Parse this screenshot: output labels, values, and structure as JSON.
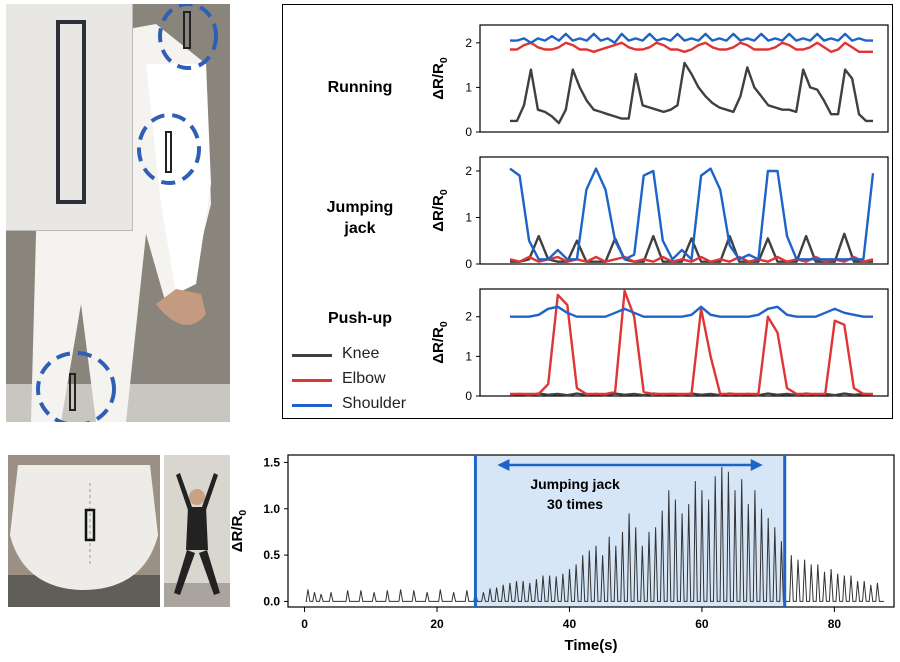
{
  "panels": {
    "running_label": "Running",
    "jumping_label_1": "Jumping",
    "jumping_label_2": "jack",
    "pushup_label": "Push-up"
  },
  "legend": [
    "Knee",
    "Elbow",
    "Shoulder"
  ],
  "colors": {
    "knee": "#404040",
    "elbow": "#e03535",
    "shoulder": "#1e64c8",
    "highlight_fill": "#d6e6f7",
    "highlight_edge": "#1e64c8"
  },
  "chart_data": [
    {
      "type": "line",
      "title": "Running",
      "ylabel": "ΔR/R0",
      "ylim": [
        0,
        2.4
      ],
      "yticks": [
        "0",
        "1",
        "2"
      ],
      "series": [
        {
          "name": "Knee",
          "values": [
            0.25,
            0.25,
            0.6,
            1.4,
            0.5,
            0.45,
            0.35,
            0.2,
            0.5,
            1.4,
            1.0,
            0.7,
            0.5,
            0.45,
            0.4,
            0.35,
            0.3,
            0.3,
            1.3,
            0.6,
            0.55,
            0.5,
            0.45,
            0.5,
            0.6,
            1.55,
            1.3,
            1.0,
            0.8,
            0.65,
            0.55,
            0.5,
            0.45,
            0.8,
            1.45,
            1.0,
            0.8,
            0.6,
            0.55,
            0.5,
            0.5,
            0.45,
            1.4,
            1.0,
            0.95,
            0.7,
            0.4,
            0.4,
            1.4,
            1.2,
            0.4,
            0.25,
            0.25
          ]
        },
        {
          "name": "Elbow",
          "values": [
            1.85,
            1.85,
            1.95,
            2.0,
            1.9,
            1.85,
            1.85,
            1.9,
            2.0,
            1.95,
            1.85,
            1.85,
            1.8,
            1.85,
            1.9,
            1.95,
            2.0,
            1.9,
            1.85,
            1.85,
            1.9,
            2.0,
            1.95,
            1.85,
            1.85,
            1.8,
            1.85,
            1.95,
            2.0,
            1.9,
            1.85,
            1.85,
            1.9,
            2.0,
            1.95,
            1.85,
            1.85,
            1.85,
            1.9,
            2.0,
            1.95,
            1.85,
            1.85,
            1.9,
            2.0,
            1.9,
            1.8,
            1.85,
            2.0,
            1.9,
            1.8,
            1.8,
            1.8
          ]
        },
        {
          "name": "Shoulder",
          "values": [
            2.05,
            2.05,
            2.1,
            2.0,
            2.1,
            2.05,
            2.15,
            2.05,
            2.2,
            2.05,
            2.1,
            2.05,
            2.2,
            2.05,
            2.1,
            2.0,
            2.2,
            2.05,
            2.1,
            2.05,
            2.2,
            2.05,
            2.1,
            2.05,
            2.2,
            2.05,
            2.1,
            2.05,
            2.2,
            2.05,
            2.1,
            2.05,
            2.2,
            2.05,
            2.1,
            2.05,
            2.2,
            2.05,
            2.1,
            2.05,
            2.2,
            2.05,
            2.1,
            2.05,
            2.2,
            2.05,
            2.1,
            2.05,
            2.2,
            2.05,
            2.1,
            2.05,
            2.05
          ]
        }
      ]
    },
    {
      "type": "line",
      "title": "Jumping jack",
      "ylabel": "ΔR/R0",
      "ylim": [
        0,
        2.3
      ],
      "yticks": [
        "0",
        "1",
        "2"
      ],
      "series": [
        {
          "name": "Knee",
          "values": [
            0.05,
            0.05,
            0.1,
            0.6,
            0.1,
            0.05,
            0.05,
            0.5,
            0.05,
            0.05,
            0.05,
            0.55,
            0.1,
            0.05,
            0.05,
            0.6,
            0.05,
            0.05,
            0.05,
            0.55,
            0.05,
            0.05,
            0.05,
            0.6,
            0.05,
            0.05,
            0.05,
            0.55,
            0.05,
            0.05,
            0.05,
            0.6,
            0.05,
            0.05,
            0.05,
            0.65,
            0.05,
            0.05,
            0.05
          ]
        },
        {
          "name": "Elbow",
          "values": [
            0.1,
            0.05,
            0.15,
            0.05,
            0.1,
            0.15,
            0.05,
            0.1,
            0.05,
            0.15,
            0.05,
            0.1,
            0.15,
            0.05,
            0.1,
            0.05,
            0.15,
            0.05,
            0.1,
            0.05,
            0.15,
            0.05,
            0.1,
            0.05,
            0.15,
            0.05,
            0.1,
            0.05,
            0.15,
            0.05,
            0.1,
            0.05,
            0.15,
            0.05,
            0.1,
            0.05,
            0.15,
            0.05,
            0.1
          ]
        },
        {
          "name": "Shoulder",
          "values": [
            2.05,
            1.9,
            0.5,
            0.1,
            0.1,
            0.3,
            0.1,
            0.1,
            1.6,
            2.05,
            1.6,
            0.5,
            0.1,
            0.2,
            1.9,
            2.0,
            0.5,
            0.1,
            0.3,
            0.1,
            1.9,
            2.05,
            1.6,
            0.4,
            0.1,
            0.2,
            0.1,
            2.0,
            2.0,
            0.6,
            0.1,
            0.1,
            0.1,
            0.1,
            0.1,
            0.1,
            0.1,
            0.1,
            1.95
          ]
        }
      ]
    },
    {
      "type": "line",
      "title": "Push-up",
      "ylabel": "ΔR/R0",
      "ylim": [
        0,
        2.7
      ],
      "yticks": [
        "0",
        "1",
        "2"
      ],
      "series": [
        {
          "name": "Knee",
          "values": [
            0.03,
            0.05,
            0.02,
            0.06,
            0.03,
            0.05,
            0.02,
            0.06,
            0.03,
            0.05,
            0.02,
            0.06,
            0.03,
            0.05,
            0.02,
            0.06,
            0.03,
            0.05,
            0.02,
            0.06,
            0.03,
            0.05,
            0.02,
            0.06,
            0.03,
            0.05,
            0.02,
            0.06,
            0.03,
            0.05,
            0.02,
            0.06,
            0.03,
            0.05,
            0.02,
            0.06,
            0.03,
            0.05,
            0.03
          ]
        },
        {
          "name": "Elbow",
          "values": [
            0.05,
            0.05,
            0.05,
            0.05,
            0.3,
            2.55,
            2.3,
            0.2,
            0.05,
            0.05,
            0.05,
            0.1,
            2.65,
            2.0,
            0.1,
            0.05,
            0.05,
            0.05,
            0.05,
            0.05,
            2.2,
            1.0,
            0.05,
            0.05,
            0.05,
            0.05,
            0.05,
            2.0,
            1.6,
            0.2,
            0.05,
            0.05,
            0.05,
            0.05,
            1.9,
            1.8,
            0.2,
            0.05,
            0.05
          ]
        },
        {
          "name": "Shoulder",
          "values": [
            2.0,
            2.0,
            2.0,
            2.05,
            2.2,
            2.25,
            2.1,
            2.0,
            2.0,
            2.0,
            2.0,
            2.1,
            2.2,
            2.1,
            2.0,
            2.0,
            2.0,
            2.0,
            2.0,
            2.05,
            2.25,
            2.05,
            2.0,
            2.0,
            2.0,
            2.0,
            2.05,
            2.2,
            2.25,
            2.05,
            2.0,
            2.0,
            2.0,
            2.1,
            2.2,
            2.1,
            2.05,
            2.0,
            2.0
          ]
        }
      ]
    },
    {
      "type": "line",
      "title": "",
      "xlabel": "Time(s)",
      "ylabel": "ΔR/R0",
      "xlim": [
        -2.5,
        89
      ],
      "ylim": [
        -0.06,
        1.58
      ],
      "xticks": [
        0,
        20,
        40,
        60,
        80
      ],
      "yticks": [
        "0.0",
        "0.5",
        "1.0",
        "1.5"
      ],
      "highlight": {
        "start": 25.8,
        "end": 72.5,
        "label_line1": "Jumping jack",
        "label_line2": "30 times"
      },
      "series": [
        {
          "name": "",
          "peak_times": [
            0.5,
            1.5,
            2.5,
            4,
            6.5,
            8.5,
            10.5,
            12.5,
            14.5,
            16.5,
            18.5,
            20.5,
            22.5,
            24.5,
            25.8,
            27,
            28,
            29,
            30,
            31,
            32,
            33,
            34,
            35,
            36,
            37,
            38,
            39,
            40,
            41,
            42,
            43,
            44,
            45,
            46,
            47,
            48,
            49,
            50,
            51,
            52,
            53,
            54,
            55,
            56,
            57,
            58,
            59,
            60,
            61,
            62,
            63,
            64,
            65,
            66,
            67,
            68,
            69,
            70,
            71,
            72,
            73.5,
            74.5,
            75.5,
            76.5,
            77.5,
            78.5,
            79.5,
            80.5,
            81.5,
            82.5,
            83.5,
            84.5,
            85.5,
            86.5
          ],
          "peak_values": [
            0.13,
            0.1,
            0.08,
            0.1,
            0.12,
            0.12,
            0.1,
            0.12,
            0.13,
            0.12,
            0.1,
            0.13,
            0.1,
            0.12,
            0.1,
            0.1,
            0.14,
            0.15,
            0.18,
            0.2,
            0.22,
            0.22,
            0.2,
            0.24,
            0.28,
            0.28,
            0.27,
            0.3,
            0.35,
            0.4,
            0.5,
            0.55,
            0.6,
            0.5,
            0.7,
            0.6,
            0.75,
            0.95,
            0.8,
            0.6,
            0.75,
            0.8,
            0.98,
            1.2,
            1.1,
            0.95,
            1.05,
            1.3,
            1.2,
            1.1,
            1.35,
            1.45,
            1.4,
            1.2,
            1.32,
            1.05,
            1.2,
            1.0,
            0.9,
            0.8,
            0.65,
            0.5,
            0.45,
            0.45,
            0.4,
            0.4,
            0.32,
            0.35,
            0.3,
            0.28,
            0.28,
            0.22,
            0.22,
            0.18,
            0.2
          ]
        }
      ]
    }
  ]
}
